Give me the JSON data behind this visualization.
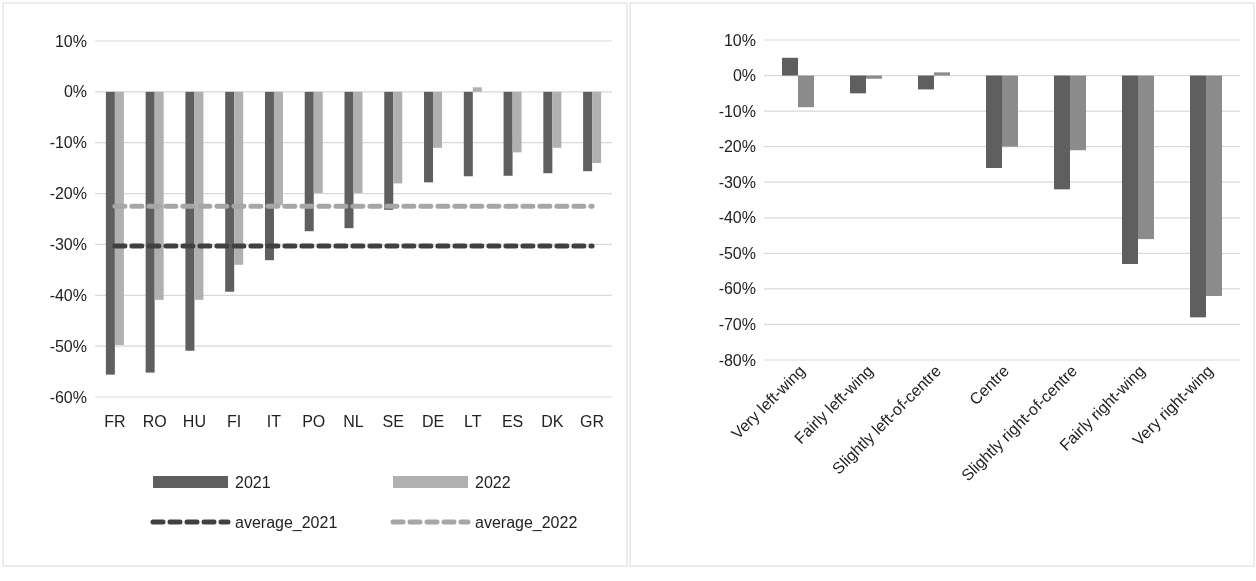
{
  "chart_data": [
    {
      "type": "bar",
      "categories": [
        "FR",
        "RO",
        "HU",
        "FI",
        "IT",
        "PO",
        "NL",
        "SE",
        "DE",
        "LT",
        "ES",
        "DK",
        "GR"
      ],
      "series": [
        {
          "name": "2021",
          "color": "#5f5f5f",
          "values": [
            -55.6,
            -55.2,
            -50.9,
            -39.3,
            -33.1,
            -27.4,
            -26.8,
            -23.2,
            -17.8,
            -16.6,
            -16.5,
            -16.0,
            -15.6
          ]
        },
        {
          "name": "2022",
          "color": "#b0b0b0",
          "values": [
            -49.8,
            -40.9,
            -40.9,
            -34.0,
            -22.3,
            -19.9,
            -19.9,
            -18.0,
            -11.0,
            0.9,
            -11.9,
            -11.0,
            -14.0
          ]
        },
        {
          "name": "average_2021",
          "type": "line",
          "color": "#404040",
          "line_style": "dashed",
          "values": [
            -30.3,
            -30.3,
            -30.3,
            -30.3,
            -30.3,
            -30.3,
            -30.3,
            -30.3,
            -30.3,
            -30.3,
            -30.3,
            -30.3,
            -30.3
          ]
        },
        {
          "name": "average_2022",
          "type": "line",
          "color": "#a6a6a6",
          "line_style": "dashed",
          "values": [
            -22.5,
            -22.5,
            -22.5,
            -22.5,
            -22.5,
            -22.5,
            -22.5,
            -22.5,
            -22.5,
            -22.5,
            -22.5,
            -22.5,
            -22.5
          ]
        }
      ],
      "ylim": [
        -60,
        10
      ],
      "yticks": [
        {
          "value": -60,
          "label": "-60%"
        },
        {
          "value": -50,
          "label": "-50%"
        },
        {
          "value": -40,
          "label": "-40%"
        },
        {
          "value": -30,
          "label": "-30%"
        },
        {
          "value": -20,
          "label": "-20%"
        },
        {
          "value": -10,
          "label": "-10%"
        },
        {
          "value": 0,
          "label": "0%"
        },
        {
          "value": 10,
          "label": "10%"
        }
      ],
      "grid": "y",
      "legend": "bottom"
    },
    {
      "type": "bar",
      "categories": [
        "Very left-wing",
        "Fairly left-wing",
        "Slightly left-of-centre",
        "Centre",
        "Slightly right-of-centre",
        "Fairly right-wing",
        "Very right-wing"
      ],
      "series": [
        {
          "color": "#5f5f5f",
          "values": [
            5.0,
            -5.0,
            -3.9,
            -26,
            -32,
            -53,
            -68
          ]
        },
        {
          "color": "#8c8c8c",
          "values": [
            -8.9,
            -0.9,
            0.9,
            -20,
            -21,
            -46,
            -62
          ]
        }
      ],
      "ylim": [
        -80,
        10
      ],
      "yticks": [
        {
          "value": -80,
          "label": "-80%"
        },
        {
          "value": -70,
          "label": "-70%"
        },
        {
          "value": -60,
          "label": "-60%"
        },
        {
          "value": -50,
          "label": "-50%"
        },
        {
          "value": -40,
          "label": "-40%"
        },
        {
          "value": -30,
          "label": "-30%"
        },
        {
          "value": -20,
          "label": "-20%"
        },
        {
          "value": -10,
          "label": "-10%"
        },
        {
          "value": 0,
          "label": "0%"
        },
        {
          "value": 10,
          "label": "10%"
        }
      ],
      "grid": "y",
      "legend": false
    }
  ]
}
